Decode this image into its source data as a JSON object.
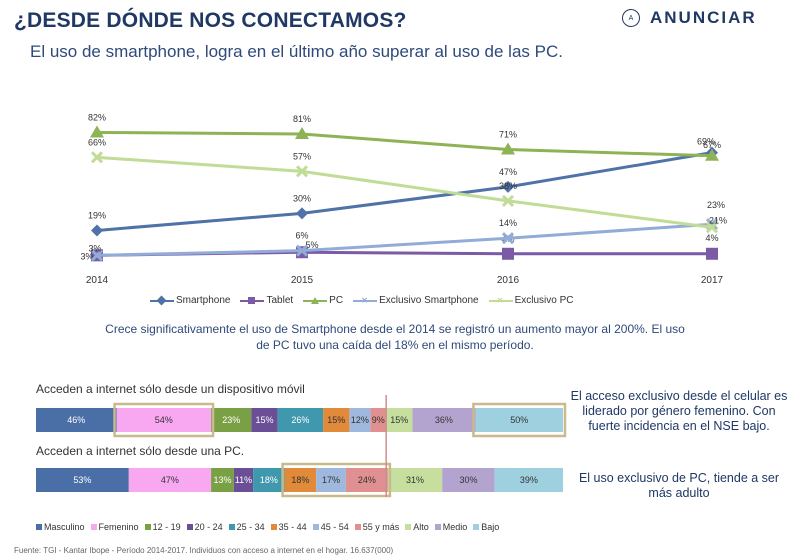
{
  "header": {
    "title": "¿DESDE DÓNDE NOS CONECTAMOS?",
    "subtitle": "El uso de smartphone, logra en el último año superar al uso de las PC.",
    "logo_text": "ANUNCIAR",
    "logo_mark": "A"
  },
  "chart_data": [
    {
      "type": "line",
      "categories": [
        "2014",
        "2015",
        "2016",
        "2017"
      ],
      "series": [
        {
          "name": "Smartphone",
          "values": [
            19,
            30,
            47,
            69
          ],
          "labels": [
            "19%",
            "30%",
            "47%",
            "69%"
          ],
          "color": "#4f72a8",
          "marker": "diamond"
        },
        {
          "name": "Tablet",
          "values": [
            3,
            5,
            4,
            4
          ],
          "labels": [
            "3%",
            "5%",
            "4%",
            "4%"
          ],
          "color": "#7b5aa6",
          "marker": "square"
        },
        {
          "name": "PC",
          "values": [
            82,
            81,
            71,
            67
          ],
          "labels": [
            "82%",
            "81%",
            "71%",
            "67%"
          ],
          "color": "#8db356",
          "marker": "triangle"
        },
        {
          "name": "Exclusivo Smartphone",
          "values": [
            3,
            6,
            14,
            23
          ],
          "labels": [
            "3%",
            "6%",
            "14%",
            "23%"
          ],
          "color": "#92acd8",
          "marker": "x"
        },
        {
          "name": "Exclusivo PC",
          "values": [
            66,
            57,
            38,
            21
          ],
          "labels": [
            "66%",
            "57%",
            "38%",
            "21%"
          ],
          "color": "#c1dc96",
          "marker": "x"
        }
      ],
      "ylim": [
        0,
        90
      ]
    },
    {
      "type": "stacked_bar",
      "rows": [
        {
          "label": "Acceden a internet sólo desde un dispositivo móvil",
          "segments": [
            {
              "category": "Masculino",
              "value": 46,
              "label": "46%"
            },
            {
              "category": "Femenino",
              "value": 54,
              "label": "54%"
            },
            {
              "category": "12 - 19",
              "value": 23,
              "label": "23%"
            },
            {
              "category": "20 - 24",
              "value": 15,
              "label": "15%"
            },
            {
              "category": "25 - 34",
              "value": 26,
              "label": "26%"
            },
            {
              "category": "35 - 44",
              "value": 15,
              "label": "15%"
            },
            {
              "category": "45 - 54",
              "value": 12,
              "label": "12%"
            },
            {
              "category": "55 y más",
              "value": 9,
              "label": "9%"
            },
            {
              "category": "Alto",
              "value": 15,
              "label": "15%"
            },
            {
              "category": "Medio",
              "value": 36,
              "label": "36%"
            },
            {
              "category": "Bajo",
              "value": 50,
              "label": "50%"
            }
          ],
          "highlighted": [
            "Femenino",
            "Bajo"
          ]
        },
        {
          "label": "Acceden a internet sólo desde una PC.",
          "segments": [
            {
              "category": "Masculino",
              "value": 53,
              "label": "53%"
            },
            {
              "category": "Femenino",
              "value": 47,
              "label": "47%"
            },
            {
              "category": "12 - 19",
              "value": 13,
              "label": "13%"
            },
            {
              "category": "20 - 24",
              "value": 11,
              "label": "11%"
            },
            {
              "category": "25 - 34",
              "value": 18,
              "label": "18%"
            },
            {
              "category": "35 - 44",
              "value": 18,
              "label": "18%"
            },
            {
              "category": "45 - 54",
              "value": 17,
              "label": "17%"
            },
            {
              "category": "55 y más",
              "value": 24,
              "label": "24%"
            },
            {
              "category": "Alto",
              "value": 31,
              "label": "31%"
            },
            {
              "category": "Medio",
              "value": 30,
              "label": "30%"
            },
            {
              "category": "Bajo",
              "value": 39,
              "label": "39%"
            }
          ],
          "highlighted": [
            "35 - 44",
            "45 - 54",
            "55 y más"
          ]
        }
      ],
      "categories": [
        {
          "name": "Masculino",
          "color": "#4a6ea6"
        },
        {
          "name": "Femenino",
          "color": "#f8a8f0"
        },
        {
          "name": "12 - 19",
          "color": "#7aa046"
        },
        {
          "name": "20 - 24",
          "color": "#6a4e96"
        },
        {
          "name": "25 - 34",
          "color": "#3f98ad"
        },
        {
          "name": "35 - 44",
          "color": "#e08a3a"
        },
        {
          "name": "45 - 54",
          "color": "#9fb8de"
        },
        {
          "name": "55 y más",
          "color": "#e09090"
        },
        {
          "name": "Alto",
          "color": "#c6df9e"
        },
        {
          "name": "Medio",
          "color": "#b3a4cf"
        },
        {
          "name": "Bajo",
          "color": "#9ed0e0"
        }
      ]
    }
  ],
  "texts": {
    "note": "Crece significativamente el uso de Smartphone desde el 2014 se registró un aumento mayor al 200%. El uso de PC tuvo una caída del 18% en el mismo período.",
    "side_text_1": "El acceso exclusivo desde el celular es liderado por género femenino. Con fuerte incidencia en el NSE bajo.",
    "side_text_2": "El uso exclusivo de PC, tiende a ser más adulto",
    "source": "Fuente: TGI - Kantar Ibope - Período 2014-2017. Individuos con acceso a internet en el hogar. 16.637(000)"
  }
}
